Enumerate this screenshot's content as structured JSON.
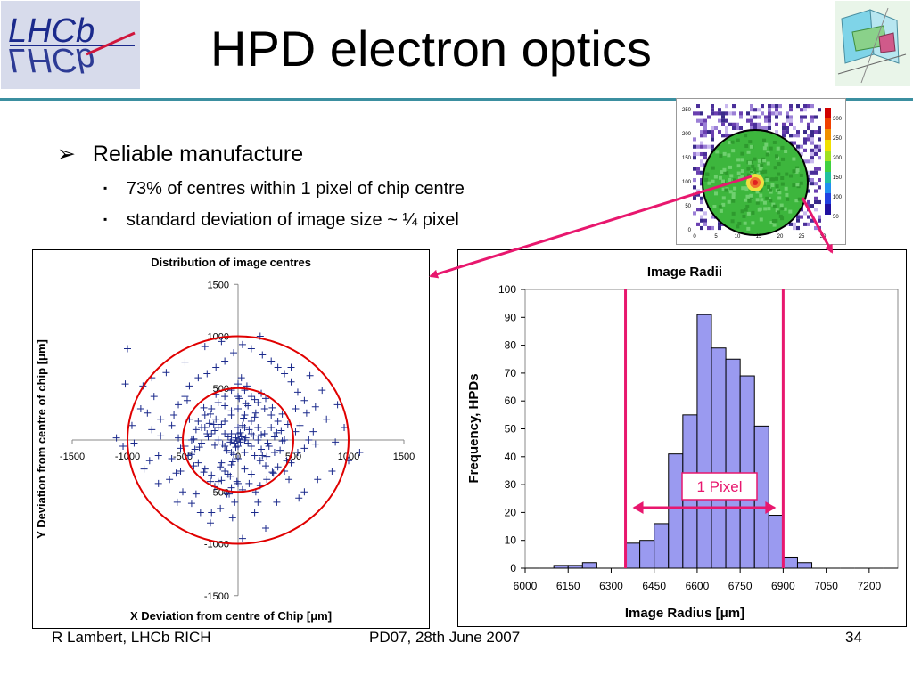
{
  "slide": {
    "title": "HPD electron optics",
    "logo_text": "LHCb",
    "bullets": [
      {
        "text": "Reliable manufacture",
        "level": 1,
        "marker": "➢"
      },
      {
        "text": "73% of centres within 1 pixel of chip centre",
        "level": 2,
        "marker": "▪"
      },
      {
        "text": "standard deviation of image size ~ ¼ pixel",
        "level": 2,
        "marker": "▪"
      }
    ],
    "footer": {
      "left": "R Lambert, LHCb RICH",
      "center": "PD07, 28th June 2007",
      "right": "34"
    },
    "colors": {
      "accent_rule": "#3b8fa0",
      "arrow": "#e8176e",
      "circle": "#e00000",
      "bars": "#9a9af0",
      "markers": "#1b2a8c",
      "pixel_lines": "#e8176e"
    }
  },
  "inset_map": {
    "y_ticks": [
      "250",
      "200",
      "150",
      "100",
      "50",
      "0"
    ],
    "x_ticks": [
      "0",
      "5",
      "10",
      "15",
      "20",
      "25",
      "30"
    ],
    "scale_ticks": [
      "300",
      "250",
      "200",
      "150",
      "100",
      "50"
    ]
  },
  "chart_data": [
    {
      "type": "scatter",
      "title": "Distribution of image centres",
      "xlabel": "X Deviation from centre of Chip [μm]",
      "ylabel": "Y Deviation from centre of chip [μm]",
      "xlim": [
        -1500,
        1500
      ],
      "ylim": [
        -1500,
        1500
      ],
      "x_ticks": [
        "-1500",
        "-1000",
        "-500",
        "0",
        "500",
        "1000",
        "1500"
      ],
      "y_ticks": [
        "1500",
        "1000",
        "500",
        "0",
        "-500",
        "-1000",
        "-1500"
      ],
      "marker": "+",
      "circles_radius": [
        500,
        1000
      ],
      "points": [
        [
          -1000,
          880
        ],
        [
          -1020,
          540
        ],
        [
          -860,
          520
        ],
        [
          -780,
          600
        ],
        [
          -820,
          260
        ],
        [
          -940,
          -30
        ],
        [
          -1040,
          -60
        ],
        [
          -780,
          100
        ],
        [
          -700,
          200
        ],
        [
          -720,
          -150
        ],
        [
          -600,
          -180
        ],
        [
          -620,
          -380
        ],
        [
          -560,
          -320
        ],
        [
          -500,
          -500
        ],
        [
          -420,
          -610
        ],
        [
          -380,
          -520
        ],
        [
          -240,
          -700
        ],
        [
          -160,
          -660
        ],
        [
          -100,
          -520
        ],
        [
          -60,
          -460
        ],
        [
          40,
          -480
        ],
        [
          100,
          -420
        ],
        [
          160,
          -500
        ],
        [
          180,
          -600
        ],
        [
          260,
          -380
        ],
        [
          320,
          -320
        ],
        [
          360,
          -260
        ],
        [
          420,
          -300
        ],
        [
          480,
          -220
        ],
        [
          540,
          -120
        ],
        [
          600,
          -80
        ],
        [
          640,
          0
        ],
        [
          680,
          80
        ],
        [
          560,
          140
        ],
        [
          620,
          260
        ],
        [
          700,
          320
        ],
        [
          600,
          380
        ],
        [
          540,
          460
        ],
        [
          480,
          560
        ],
        [
          420,
          640
        ],
        [
          360,
          700
        ],
        [
          300,
          760
        ],
        [
          220,
          820
        ],
        [
          120,
          880
        ],
        [
          40,
          920
        ],
        [
          -40,
          840
        ],
        [
          -120,
          760
        ],
        [
          -200,
          700
        ],
        [
          -280,
          640
        ],
        [
          -360,
          600
        ],
        [
          -440,
          520
        ],
        [
          -480,
          420
        ],
        [
          -540,
          340
        ],
        [
          -580,
          240
        ],
        [
          -600,
          140
        ],
        [
          -540,
          20
        ],
        [
          -480,
          -60
        ],
        [
          -420,
          -140
        ],
        [
          -360,
          -220
        ],
        [
          -300,
          -280
        ],
        [
          -240,
          -340
        ],
        [
          -180,
          -400
        ],
        [
          -120,
          -300
        ],
        [
          -60,
          -240
        ],
        [
          0,
          -180
        ],
        [
          60,
          -120
        ],
        [
          120,
          -60
        ],
        [
          180,
          0
        ],
        [
          240,
          60
        ],
        [
          300,
          120
        ],
        [
          360,
          180
        ],
        [
          300,
          240
        ],
        [
          240,
          300
        ],
        [
          180,
          360
        ],
        [
          120,
          420
        ],
        [
          60,
          480
        ],
        [
          0,
          540
        ],
        [
          -60,
          480
        ],
        [
          -120,
          420
        ],
        [
          -180,
          360
        ],
        [
          -240,
          300
        ],
        [
          -300,
          240
        ],
        [
          -360,
          180
        ],
        [
          -300,
          120
        ],
        [
          -240,
          60
        ],
        [
          -180,
          0
        ],
        [
          -120,
          -60
        ],
        [
          -60,
          -120
        ],
        [
          0,
          -60
        ],
        [
          60,
          0
        ],
        [
          120,
          60
        ],
        [
          180,
          120
        ],
        [
          120,
          180
        ],
        [
          60,
          240
        ],
        [
          0,
          300
        ],
        [
          -60,
          240
        ],
        [
          -120,
          180
        ],
        [
          -180,
          120
        ],
        [
          -120,
          60
        ],
        [
          -60,
          0
        ],
        [
          0,
          60
        ],
        [
          60,
          120
        ],
        [
          0,
          120
        ],
        [
          -60,
          60
        ],
        [
          30,
          30
        ],
        [
          -30,
          -30
        ],
        [
          90,
          -30
        ],
        [
          -90,
          30
        ],
        [
          150,
          -150
        ],
        [
          -150,
          150
        ],
        [
          210,
          -90
        ],
        [
          -210,
          90
        ],
        [
          270,
          -30
        ],
        [
          -270,
          30
        ],
        [
          330,
          30
        ],
        [
          -330,
          -30
        ],
        [
          390,
          90
        ],
        [
          -390,
          -90
        ],
        [
          450,
          150
        ],
        [
          -450,
          -150
        ],
        [
          90,
          330
        ],
        [
          -90,
          -330
        ],
        [
          150,
          390
        ],
        [
          -150,
          -390
        ],
        [
          210,
          450
        ],
        [
          -210,
          -450
        ],
        [
          30,
          600
        ],
        [
          -30,
          -600
        ],
        [
          420,
          0
        ],
        [
          -420,
          0
        ],
        [
          0,
          420
        ],
        [
          0,
          -420
        ],
        [
          380,
          -100
        ],
        [
          -380,
          100
        ],
        [
          250,
          -250
        ],
        [
          -250,
          250
        ],
        [
          520,
          300
        ],
        [
          -520,
          -300
        ],
        [
          460,
          -380
        ],
        [
          -460,
          380
        ],
        [
          700,
          -40
        ],
        [
          -700,
          40
        ],
        [
          800,
          200
        ],
        [
          -800,
          -200
        ],
        [
          880,
          -20
        ],
        [
          1100,
          -120
        ],
        [
          -300,
          900
        ],
        [
          250,
          -850
        ],
        [
          -250,
          -800
        ],
        [
          40,
          -950
        ],
        [
          150,
          -700
        ],
        [
          -50,
          -750
        ],
        [
          -340,
          -700
        ],
        [
          350,
          -600
        ],
        [
          600,
          -500
        ],
        [
          200,
          1000
        ],
        [
          -150,
          950
        ],
        [
          480,
          700
        ],
        [
          -480,
          750
        ],
        [
          -650,
          650
        ],
        [
          650,
          620
        ],
        [
          760,
          480
        ],
        [
          -760,
          420
        ],
        [
          -880,
          300
        ],
        [
          900,
          340
        ],
        [
          960,
          120
        ],
        [
          -960,
          140
        ],
        [
          -1100,
          20
        ],
        [
          1000,
          -200
        ],
        [
          850,
          -300
        ],
        [
          -850,
          -280
        ],
        [
          -720,
          -420
        ],
        [
          720,
          -380
        ],
        [
          -550,
          -600
        ],
        [
          550,
          -560
        ],
        [
          10,
          10
        ],
        [
          -10,
          -10
        ],
        [
          20,
          -20
        ],
        [
          -20,
          20
        ],
        [
          70,
          20
        ],
        [
          -70,
          -20
        ],
        [
          20,
          70
        ],
        [
          -20,
          -70
        ],
        [
          140,
          40
        ],
        [
          -140,
          -40
        ],
        [
          40,
          140
        ],
        [
          -40,
          -140
        ],
        [
          210,
          50
        ],
        [
          -210,
          -50
        ],
        [
          50,
          210
        ],
        [
          -50,
          -210
        ],
        [
          280,
          -60
        ],
        [
          -280,
          60
        ],
        [
          -60,
          280
        ],
        [
          60,
          -280
        ],
        [
          350,
          70
        ],
        [
          -350,
          -70
        ],
        [
          70,
          350
        ],
        [
          -70,
          -350
        ],
        [
          100,
          100
        ],
        [
          -100,
          -100
        ],
        [
          200,
          -200
        ],
        [
          -200,
          200
        ],
        [
          160,
          260
        ],
        [
          -160,
          -260
        ],
        [
          260,
          -160
        ],
        [
          -260,
          160
        ],
        [
          330,
          -120
        ],
        [
          -330,
          120
        ],
        [
          120,
          -330
        ],
        [
          -120,
          330
        ],
        [
          400,
          250
        ],
        [
          -400,
          -250
        ],
        [
          250,
          400
        ],
        [
          -250,
          -400
        ],
        [
          440,
          -200
        ],
        [
          -440,
          200
        ],
        [
          200,
          -440
        ],
        [
          -200,
          440
        ],
        [
          80,
          520
        ],
        [
          -80,
          -520
        ],
        [
          520,
          80
        ],
        [
          -520,
          -80
        ],
        [
          310,
          310
        ],
        [
          -310,
          -310
        ],
        [
          310,
          -310
        ],
        [
          -310,
          310
        ],
        [
          10,
          400
        ],
        [
          -10,
          -400
        ],
        [
          400,
          -10
        ],
        [
          -400,
          10
        ],
        [
          150,
          220
        ],
        [
          -150,
          -220
        ],
        [
          220,
          -150
        ],
        [
          -220,
          150
        ]
      ]
    },
    {
      "type": "bar",
      "title": "Image Radii",
      "xlabel": "Image Radius [μm]",
      "ylabel": "Frequency, HPDs",
      "xlim": [
        6000,
        7300
      ],
      "ylim": [
        0,
        100
      ],
      "x_ticks": [
        "6000",
        "6150",
        "6300",
        "6450",
        "6600",
        "6750",
        "6900",
        "7050",
        "7200"
      ],
      "y_ticks": [
        "0",
        "10",
        "20",
        "30",
        "40",
        "50",
        "60",
        "70",
        "80",
        "90",
        "100"
      ],
      "bin_width": 50,
      "bins": [
        6000,
        6050,
        6100,
        6150,
        6200,
        6250,
        6300,
        6350,
        6400,
        6450,
        6500,
        6550,
        6600,
        6650,
        6700,
        6750,
        6800,
        6850,
        6900,
        6950,
        7000,
        7050,
        7100,
        7150,
        7200,
        7250
      ],
      "values": [
        0,
        0,
        1,
        1,
        2,
        0,
        0,
        9,
        10,
        16,
        41,
        55,
        91,
        79,
        75,
        69,
        51,
        19,
        4,
        2,
        0,
        0,
        0,
        0,
        0,
        0
      ],
      "vlines": [
        6350,
        6900
      ],
      "annotation": "1 Pixel"
    }
  ]
}
